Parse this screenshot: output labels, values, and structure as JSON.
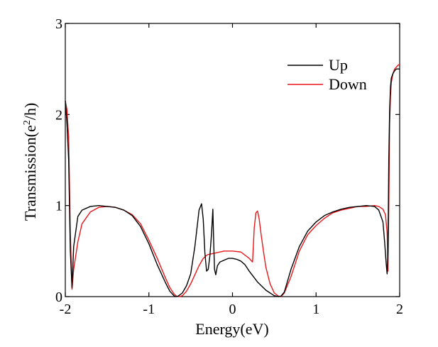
{
  "chart_data": {
    "type": "line",
    "title": "",
    "xlabel": "Energy(eV)",
    "ylabel": "Transmission(e",
    "ylabel_sup": "2",
    "ylabel_tail": "/h)",
    "xlim": [
      -2,
      2
    ],
    "ylim": [
      0,
      3
    ],
    "x_ticks": [
      -2,
      -1,
      0,
      1,
      2
    ],
    "x_tick_labels": [
      "-2",
      "-1",
      "0",
      "1",
      "2"
    ],
    "y_ticks": [
      0,
      1,
      2,
      3
    ],
    "y_tick_labels": [
      "0",
      "1",
      "2",
      "3"
    ],
    "grid": false,
    "legend_position": "top-right",
    "series": [
      {
        "name": "Up",
        "color": "#000000",
        "x": [
          -2.0,
          -1.98,
          -1.96,
          -1.94,
          -1.92,
          -1.9,
          -1.85,
          -1.8,
          -1.7,
          -1.6,
          -1.5,
          -1.4,
          -1.3,
          -1.2,
          -1.1,
          -1.0,
          -0.9,
          -0.8,
          -0.75,
          -0.7,
          -0.68,
          -0.65,
          -0.6,
          -0.55,
          -0.5,
          -0.45,
          -0.4,
          -0.37,
          -0.35,
          -0.33,
          -0.31,
          -0.29,
          -0.27,
          -0.25,
          -0.235,
          -0.225,
          -0.215,
          -0.2,
          -0.18,
          -0.15,
          -0.1,
          -0.05,
          0.0,
          0.05,
          0.1,
          0.15,
          0.2,
          0.3,
          0.4,
          0.5,
          0.55,
          0.58,
          0.62,
          0.7,
          0.8,
          0.9,
          1.0,
          1.1,
          1.2,
          1.3,
          1.4,
          1.5,
          1.6,
          1.7,
          1.75,
          1.8,
          1.82,
          1.84,
          1.85,
          1.86,
          1.87,
          1.88,
          1.89,
          1.9,
          1.92,
          1.94,
          1.96,
          1.98,
          2.0
        ],
        "y": [
          2.15,
          1.9,
          1.5,
          0.5,
          0.1,
          0.55,
          0.88,
          0.95,
          0.99,
          1.0,
          0.99,
          0.98,
          0.95,
          0.89,
          0.77,
          0.58,
          0.35,
          0.15,
          0.06,
          0.01,
          0.0,
          0.005,
          0.04,
          0.12,
          0.25,
          0.55,
          0.95,
          1.02,
          0.85,
          0.48,
          0.28,
          0.3,
          0.45,
          0.7,
          0.96,
          0.6,
          0.3,
          0.24,
          0.34,
          0.38,
          0.4,
          0.42,
          0.42,
          0.41,
          0.39,
          0.35,
          0.28,
          0.16,
          0.07,
          0.01,
          0.0,
          0.005,
          0.05,
          0.3,
          0.55,
          0.72,
          0.82,
          0.89,
          0.93,
          0.96,
          0.98,
          0.99,
          1.0,
          0.99,
          0.95,
          0.82,
          0.6,
          0.35,
          0.25,
          0.5,
          1.5,
          2.05,
          2.3,
          2.4,
          2.45,
          2.48,
          2.5,
          2.5,
          2.5
        ]
      },
      {
        "name": "Down",
        "color": "#e8161b",
        "x": [
          -2.0,
          -1.98,
          -1.96,
          -1.94,
          -1.92,
          -1.9,
          -1.85,
          -1.8,
          -1.7,
          -1.6,
          -1.5,
          -1.4,
          -1.3,
          -1.2,
          -1.1,
          -1.0,
          -0.9,
          -0.8,
          -0.75,
          -0.7,
          -0.67,
          -0.63,
          -0.6,
          -0.55,
          -0.5,
          -0.45,
          -0.4,
          -0.35,
          -0.3,
          -0.2,
          -0.1,
          0.0,
          0.1,
          0.2,
          0.24,
          0.26,
          0.28,
          0.3,
          0.32,
          0.34,
          0.37,
          0.4,
          0.45,
          0.5,
          0.55,
          0.58,
          0.62,
          0.7,
          0.8,
          0.9,
          1.0,
          1.1,
          1.2,
          1.3,
          1.4,
          1.5,
          1.6,
          1.7,
          1.75,
          1.8,
          1.83,
          1.85,
          1.86,
          1.87,
          1.88,
          1.89,
          1.9,
          1.92,
          1.94,
          1.96,
          1.98,
          2.0
        ],
        "y": [
          2.15,
          2.05,
          1.75,
          0.7,
          0.08,
          0.3,
          0.6,
          0.8,
          0.93,
          0.98,
          0.99,
          0.98,
          0.95,
          0.9,
          0.8,
          0.62,
          0.42,
          0.2,
          0.1,
          0.03,
          0.005,
          0.0,
          0.01,
          0.06,
          0.14,
          0.24,
          0.34,
          0.42,
          0.46,
          0.48,
          0.5,
          0.5,
          0.49,
          0.42,
          0.38,
          0.75,
          0.92,
          0.94,
          0.85,
          0.7,
          0.5,
          0.32,
          0.14,
          0.04,
          0.005,
          0.0,
          0.04,
          0.22,
          0.5,
          0.68,
          0.78,
          0.86,
          0.92,
          0.95,
          0.97,
          0.99,
          0.99,
          1.0,
          0.99,
          0.96,
          0.9,
          0.7,
          0.28,
          1.0,
          1.9,
          2.2,
          2.35,
          2.45,
          2.5,
          2.52,
          2.54,
          2.55
        ]
      }
    ]
  }
}
